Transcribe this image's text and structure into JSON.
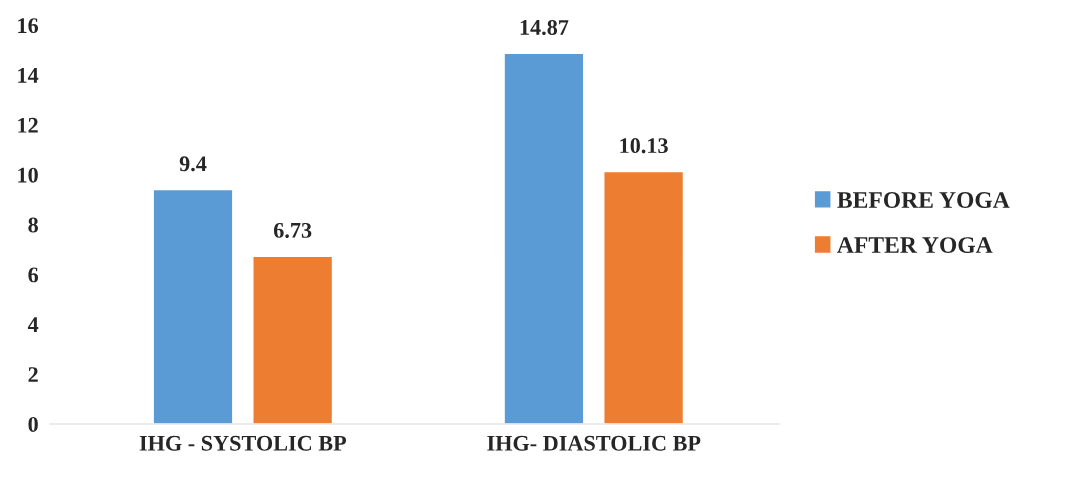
{
  "chart_data": {
    "type": "bar",
    "categories": [
      "IHG - SYSTOLIC BP",
      "IHG- DIASTOLIC BP"
    ],
    "series": [
      {
        "name": "BEFORE YOGA",
        "color": "#5b9bd5",
        "values": [
          9.4,
          14.87
        ]
      },
      {
        "name": "AFTER YOGA",
        "color": "#ed7d31",
        "values": [
          6.73,
          10.13
        ]
      }
    ],
    "ylim": [
      0,
      16
    ],
    "yticks": [
      0,
      2,
      4,
      6,
      8,
      10,
      12,
      14,
      16
    ],
    "data_labels": true,
    "grid": false,
    "legend": "right"
  }
}
